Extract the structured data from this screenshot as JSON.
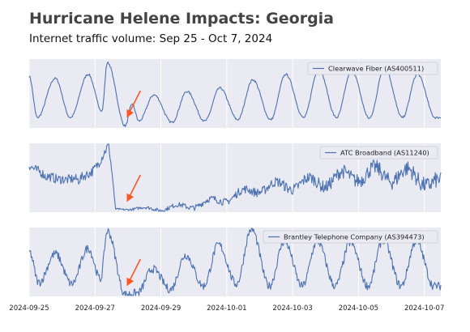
{
  "title": "Hurricane Helene Impacts: Georgia",
  "subtitle": "Internet traffic volume: Sep 25 - Oct 7, 2024",
  "chart_data": {
    "type": "line",
    "x_range": [
      "2024-09-25",
      "2024-10-07T12:00"
    ],
    "x_ticks": [
      "2024-09-25",
      "2024-09-27",
      "2024-09-29",
      "2024-10-01",
      "2024-10-03",
      "2024-10-05",
      "2024-10-07"
    ],
    "grid": true,
    "line_color": "#4c72b0",
    "panel_background": "#eaeaf2",
    "arrow_color": "#ff5722",
    "annotation": "arrow pointing at the traffic drop on 2024-09-27",
    "panels": [
      {
        "name": "Clearwave Fiber (AS400511)",
        "legend_position": "top-right",
        "y_range": [
          0,
          100
        ],
        "drop_date": "2024-09-27T14:00",
        "pre_level": [
          40,
          85
        ],
        "post_points": [
          [
            0,
            12
          ],
          [
            0.5,
            22
          ],
          [
            1.5,
            35
          ],
          [
            3,
            55
          ],
          [
            5,
            60
          ],
          [
            7,
            68
          ],
          [
            9.5,
            70
          ]
        ],
        "peaks": [
          [
            "2024-09-25T00:00",
            75
          ],
          [
            "2024-09-25T19:00",
            72
          ],
          [
            "2024-09-26T19:00",
            78
          ],
          [
            "2024-09-27T09:00",
            95
          ],
          [
            "2024-09-28T03:00",
            35
          ],
          [
            "2024-09-28T19:00",
            48
          ],
          [
            "2024-09-29T19:00",
            53
          ],
          [
            "2024-09-30T19:00",
            58
          ],
          [
            "2024-10-01T19:00",
            70
          ],
          [
            "2024-10-02T19:00",
            78
          ],
          [
            "2024-10-03T19:00",
            85
          ],
          [
            "2024-10-04T19:00",
            83
          ],
          [
            "2024-10-05T19:00",
            88
          ],
          [
            "2024-10-06T19:00",
            78
          ]
        ],
        "troughs": [
          [
            "2024-09-25T06:00",
            15
          ],
          [
            "2024-09-26T06:00",
            15
          ],
          [
            "2024-09-27T05:00",
            25
          ],
          [
            "2024-09-27T22:00",
            3
          ],
          [
            "2024-09-28T08:00",
            10
          ],
          [
            "2024-09-29T08:00",
            8
          ],
          [
            "2024-09-30T08:00",
            10
          ],
          [
            "2024-10-01T08:00",
            12
          ],
          [
            "2024-10-02T08:00",
            12
          ],
          [
            "2024-10-03T08:00",
            15
          ],
          [
            "2024-10-04T08:00",
            15
          ],
          [
            "2024-10-05T08:00",
            14
          ],
          [
            "2024-10-06T08:00",
            15
          ],
          [
            "2024-10-07T08:00",
            15
          ]
        ]
      },
      {
        "name": "ATC Broadband (AS11240)",
        "legend_position": "top-right",
        "y_range": [
          0,
          100
        ],
        "drop_date": "2024-09-27T14:00",
        "levels": [
          [
            "2024-09-25T00:00",
            75
          ],
          [
            "2024-09-25T12:00",
            45
          ],
          [
            "2024-09-26T00:00",
            55
          ],
          [
            "2024-09-26T12:00",
            40
          ],
          [
            "2024-09-27T00:00",
            70
          ],
          [
            "2024-09-27T10:00",
            92
          ],
          [
            "2024-09-27T15:00",
            4
          ],
          [
            "2024-09-28T00:00",
            5
          ],
          [
            "2024-09-29T00:00",
            5
          ],
          [
            "2024-09-30T00:00",
            10
          ],
          [
            "2024-10-01T00:00",
            20
          ],
          [
            "2024-10-02T00:00",
            35
          ],
          [
            "2024-10-03T00:00",
            40
          ],
          [
            "2024-10-04T00:00",
            45
          ],
          [
            "2024-10-05T00:00",
            55
          ],
          [
            "2024-10-06T00:00",
            55
          ],
          [
            "2024-10-07T00:00",
            50
          ],
          [
            "2024-10-07T12:00",
            35
          ]
        ]
      },
      {
        "name": "Brantley Telephone Company (AS394473)",
        "legend_position": "top-right",
        "y_range": [
          0,
          100
        ],
        "drop_date": "2024-09-27T14:00",
        "peaks": [
          [
            "2024-09-25T00:00",
            65
          ],
          [
            "2024-09-25T19:00",
            62
          ],
          [
            "2024-09-26T19:00",
            70
          ],
          [
            "2024-09-27T09:00",
            95
          ],
          [
            "2024-09-28T18:00",
            40
          ],
          [
            "2024-09-29T18:00",
            60
          ],
          [
            "2024-09-30T18:00",
            75
          ],
          [
            "2024-10-01T18:00",
            98
          ],
          [
            "2024-10-02T18:00",
            80
          ],
          [
            "2024-10-03T18:00",
            80
          ],
          [
            "2024-10-04T18:00",
            78
          ],
          [
            "2024-10-05T18:00",
            82
          ],
          [
            "2024-10-06T18:00",
            80
          ]
        ],
        "troughs": [
          [
            "2024-09-25T07:00",
            20
          ],
          [
            "2024-09-26T07:00",
            18
          ],
          [
            "2024-09-27T04:00",
            25
          ],
          [
            "2024-09-27T22:00",
            3
          ],
          [
            "2024-09-28T07:00",
            5
          ],
          [
            "2024-09-29T07:00",
            10
          ],
          [
            "2024-09-30T07:00",
            15
          ],
          [
            "2024-10-01T07:00",
            18
          ],
          [
            "2024-10-02T07:00",
            15
          ],
          [
            "2024-10-03T07:00",
            15
          ],
          [
            "2024-10-04T07:00",
            15
          ],
          [
            "2024-10-05T07:00",
            15
          ],
          [
            "2024-10-06T07:00",
            15
          ],
          [
            "2024-10-07T07:00",
            15
          ]
        ]
      }
    ]
  }
}
